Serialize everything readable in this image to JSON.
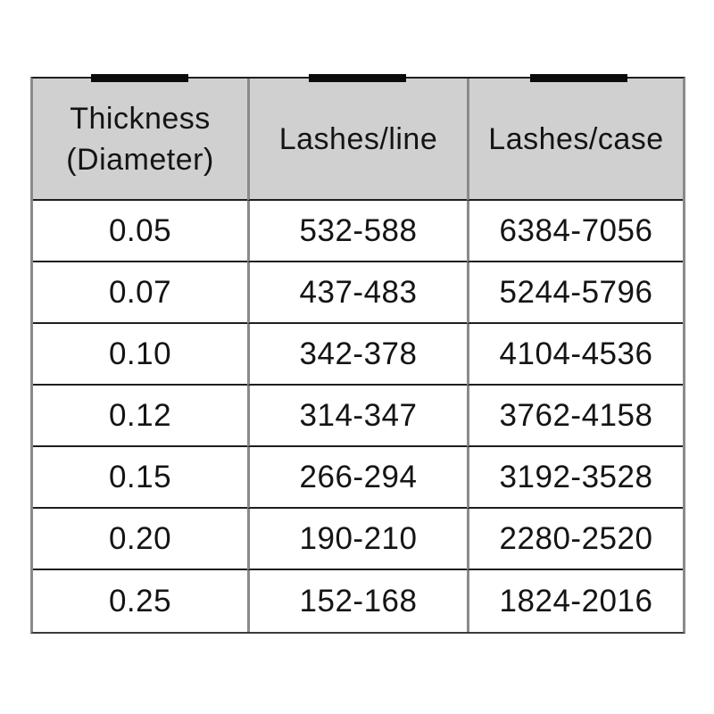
{
  "table": {
    "headers": [
      "Thickness (Diameter)",
      "Lashes/line",
      "Lashes/case"
    ],
    "rows": [
      [
        "0.05",
        "532-588",
        "6384-7056"
      ],
      [
        "0.07",
        "437-483",
        "5244-5796"
      ],
      [
        "0.10",
        "342-378",
        "4104-4536"
      ],
      [
        "0.12",
        "314-347",
        "3762-4158"
      ],
      [
        "0.15",
        "266-294",
        "3192-3528"
      ],
      [
        "0.20",
        "190-210",
        "2280-2520"
      ],
      [
        "0.25",
        "152-168",
        "1824-2016"
      ]
    ]
  },
  "colors": {
    "header_background": "#d0d0d0",
    "horizontal_rule": "#1e1e1e",
    "vertical_rule": "#8a8a8a",
    "tab_mark": "#0b0b0b",
    "text": "#141414",
    "page_background": "#ffffff"
  }
}
